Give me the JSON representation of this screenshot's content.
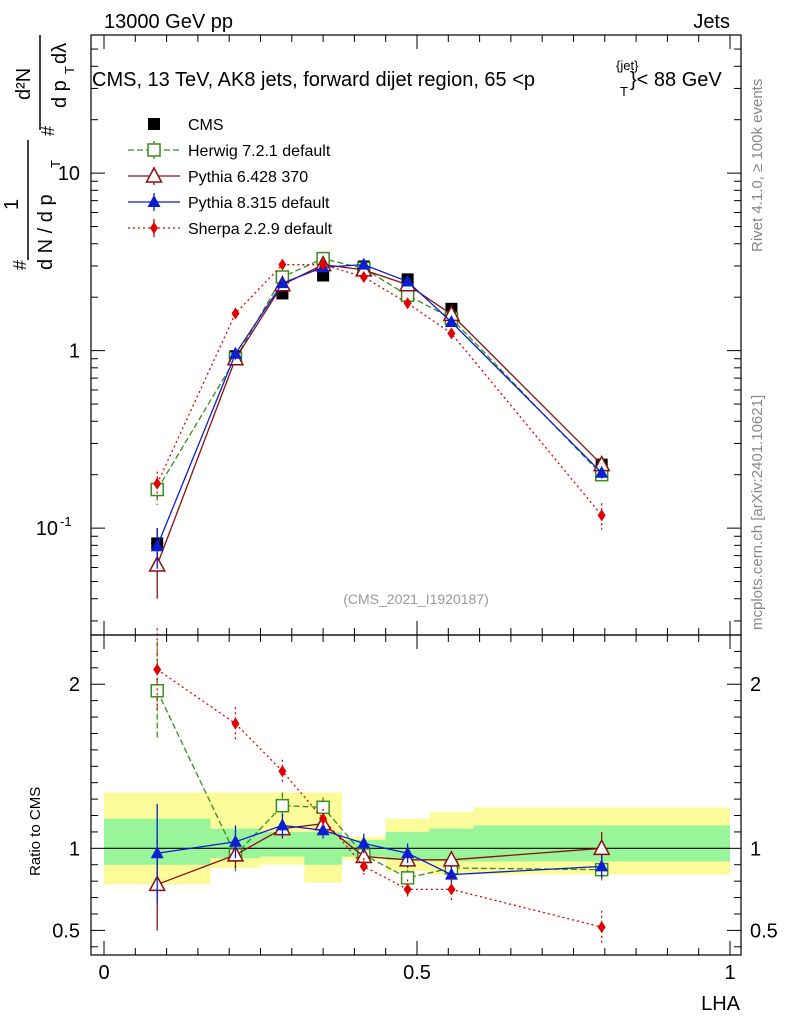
{
  "header": {
    "left_label": "13000 GeV pp",
    "right_label": "Jets",
    "title_main": "CMS, 13 TeV, AK8 jets, forward dijet region, 65 <p",
    "title_sub": "T",
    "title_sup": "{jet}",
    "title_tail": "}< 88 GeV"
  },
  "side_labels": {
    "rivet": "Rivet 4.1.0, ≥ 100k events",
    "mcplots": "mcplots.cern.ch [arXiv:2401.10621]"
  },
  "watermark": "(CMS_2021_I1920187)",
  "ylabel_main": {
    "numerator": "1",
    "denominator": "d N / d p",
    "sub": "T",
    "hash": "#",
    "d2N": "d²N",
    "dpt_dl": "d p",
    "dl": "dλ"
  },
  "ylabel_ratio": "Ratio to CMS",
  "xlabel": "LHA",
  "colors": {
    "cms": "#000000",
    "herwig": "#3a8c1c",
    "pythia6": "#8b0f0f",
    "pythia8": "#0a1fd0",
    "sherpa": "#e00000",
    "band_inner": "#99f599",
    "band_outer": "#fbfb99"
  },
  "chart_data": [
    {
      "type": "scatter",
      "title": "CMS, 13 TeV, AK8 jets, forward dijet region, 65 <p_T^{jet}< 88 GeV",
      "xlabel": "LHA",
      "ylabel": "1/(dN/dp_T) d²N/(dp_T dλ)",
      "yscale": "log",
      "xlim": [
        0,
        1
      ],
      "ylim": [
        0.025,
        60
      ],
      "ytick_labels": [
        "10^-1",
        "1",
        "10"
      ],
      "x": [
        0.085,
        0.21,
        0.285,
        0.35,
        0.415,
        0.485,
        0.555,
        0.795
      ],
      "x_err": [
        0.085,
        0.04,
        0.035,
        0.03,
        0.035,
        0.035,
        0.035,
        0.205
      ],
      "series": [
        {
          "name": "CMS",
          "marker": "filled-square",
          "values": [
            0.082,
            0.93,
            2.1,
            2.65,
            2.98,
            2.52,
            1.72,
            0.228
          ],
          "err": [
            0.018,
            0.06,
            0.1,
            0.1,
            0.1,
            0.1,
            0.07,
            0.015
          ]
        },
        {
          "name": "Herwig 7.2.1 default",
          "marker": "open-square",
          "line": "dashed",
          "values": [
            0.165,
            0.9,
            2.6,
            3.3,
            2.9,
            2.05,
            1.52,
            0.2
          ],
          "err": [
            0.03,
            0.06,
            0.15,
            0.15,
            0.12,
            0.1,
            0.07,
            0.015
          ]
        },
        {
          "name": "Pythia 6.428 370",
          "marker": "open-triangle",
          "line": "solid",
          "values": [
            0.062,
            0.9,
            2.35,
            3.05,
            2.85,
            2.35,
            1.6,
            0.228
          ],
          "err": [
            0.022,
            0.06,
            0.12,
            0.14,
            0.12,
            0.1,
            0.08,
            0.015
          ]
        },
        {
          "name": "Pythia 8.315 default",
          "marker": "filled-triangle",
          "line": "solid",
          "values": [
            0.079,
            0.96,
            2.4,
            2.95,
            3.05,
            2.45,
            1.45,
            0.205
          ],
          "err": [
            0.02,
            0.07,
            0.12,
            0.12,
            0.12,
            0.1,
            0.07,
            0.015
          ]
        },
        {
          "name": "Sherpa 2.2.9 default",
          "marker": "filled-diamond",
          "line": "dotted",
          "values": [
            0.178,
            1.62,
            3.05,
            3.05,
            2.6,
            1.85,
            1.25,
            0.118
          ],
          "err": [
            0.03,
            0.1,
            0.15,
            0.15,
            0.12,
            0.1,
            0.08,
            0.02
          ]
        }
      ]
    },
    {
      "type": "scatter",
      "ylabel": "Ratio to CMS",
      "xlabel": "LHA",
      "xlim": [
        0,
        1
      ],
      "ylim": [
        0.35,
        2.3
      ],
      "ytick_labels": [
        "0.5",
        "1",
        "2"
      ],
      "xtick_labels": [
        "0",
        "0.5",
        "1"
      ],
      "reference_line": 1,
      "bands": [
        {
          "x0": 0.0,
          "x1": 0.17,
          "inner": [
            0.9,
            1.18
          ],
          "outer": [
            0.78,
            1.34
          ]
        },
        {
          "x0": 0.17,
          "x1": 0.25,
          "inner": [
            0.94,
            1.12
          ],
          "outer": [
            0.88,
            1.34
          ]
        },
        {
          "x0": 0.25,
          "x1": 0.32,
          "inner": [
            0.95,
            1.1
          ],
          "outer": [
            0.9,
            1.34
          ]
        },
        {
          "x0": 0.32,
          "x1": 0.38,
          "inner": [
            0.9,
            1.1
          ],
          "outer": [
            0.79,
            1.34
          ]
        },
        {
          "x0": 0.38,
          "x1": 0.45,
          "inner": [
            0.95,
            1.05
          ],
          "outer": [
            0.93,
            1.07
          ]
        },
        {
          "x0": 0.45,
          "x1": 0.52,
          "inner": [
            0.93,
            1.1
          ],
          "outer": [
            0.86,
            1.18
          ]
        },
        {
          "x0": 0.52,
          "x1": 0.59,
          "inner": [
            0.92,
            1.12
          ],
          "outer": [
            0.84,
            1.22
          ]
        },
        {
          "x0": 0.59,
          "x1": 1.0,
          "inner": [
            0.92,
            1.14
          ],
          "outer": [
            0.84,
            1.25
          ]
        }
      ],
      "series": [
        {
          "name": "CMS",
          "values": [
            1,
            1,
            1,
            1,
            1,
            1,
            1,
            1
          ]
        },
        {
          "name": "Herwig 7.2.1 default",
          "values": [
            1.96,
            0.96,
            1.26,
            1.25,
            0.96,
            0.82,
            0.88,
            0.87
          ],
          "err": [
            0.3,
            0.1,
            0.08,
            0.06,
            0.05,
            0.05,
            0.05,
            0.08
          ]
        },
        {
          "name": "Pythia 6.428 370",
          "values": [
            0.78,
            0.96,
            1.12,
            1.15,
            0.95,
            0.93,
            0.93,
            1.0
          ],
          "err": [
            0.28,
            0.08,
            0.06,
            0.06,
            0.05,
            0.05,
            0.05,
            0.1
          ]
        },
        {
          "name": "Pythia 8.315 default",
          "values": [
            0.97,
            1.04,
            1.14,
            1.11,
            1.03,
            0.97,
            0.84,
            0.89
          ],
          "err": [
            0.3,
            0.1,
            0.07,
            0.05,
            0.06,
            0.06,
            0.05,
            0.07
          ]
        },
        {
          "name": "Sherpa 2.2.9 default",
          "values": [
            2.09,
            1.76,
            1.47,
            1.18,
            0.89,
            0.75,
            0.75,
            0.52
          ],
          "err": [
            0.25,
            0.1,
            0.07,
            0.06,
            0.05,
            0.06,
            0.07,
            0.1
          ]
        }
      ]
    }
  ]
}
